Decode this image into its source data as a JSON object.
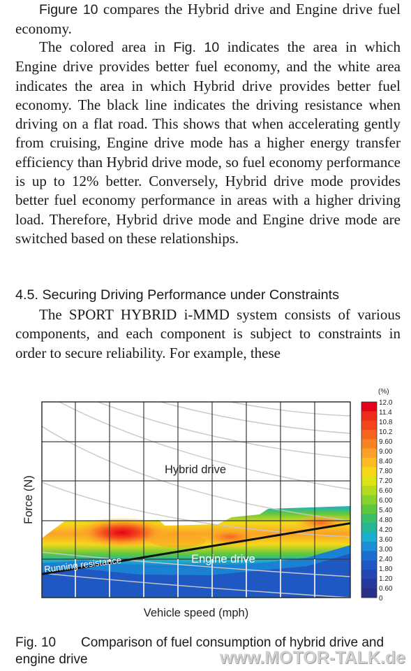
{
  "text": {
    "p1_lead": "Figure 10",
    "p1_rest": " compares the Hybrid drive and Engine drive fuel economy.",
    "p2_a": "The colored area in ",
    "p2_fig": "Fig. 10",
    "p2_rest": " indicates the area in which Engine drive provides better fuel economy, and the white area indicates the area in which Hybrid drive provides better fuel economy. The black line indicates the driving resistance when driving on a flat road. This shows that when accelerating gently from cruising, Engine drive mode has a higher energy transfer efficiency than Hybrid drive mode, so fuel economy performance is up to 12% better. Conversely, Hybrid drive mode provides better fuel economy performance in areas with a higher driving load. Therefore, Hybrid drive mode and Engine drive mode are switched based on these relationships.",
    "heading": "4.5. Securing Driving Performance under Constraints",
    "p3": "The SPORT HYBRID i-MMD system consists of various components, and each component is subject to constraints in order to secure reliability. For example, these"
  },
  "chart_data": {
    "type": "heatmap",
    "xlabel": "Vehicle speed (mph)",
    "ylabel": "Force (N)",
    "region_labels": [
      "Hybrid drive",
      "Engine drive",
      "Running resistance"
    ],
    "colorbar": {
      "unit": "(%)",
      "ticks": [
        "12.0",
        "11.4",
        "10.8",
        "10.2",
        "9.60",
        "9.00",
        "8.40",
        "7.80",
        "7.20",
        "6.60",
        "6.00",
        "5.40",
        "4.80",
        "4.20",
        "3.60",
        "3.00",
        "2.40",
        "1.80",
        "1.20",
        "0.60",
        "0"
      ],
      "colors": [
        "#e3001b",
        "#ee2a1a",
        "#f4461b",
        "#f7641e",
        "#f98322",
        "#fba126",
        "#fdbd22",
        "#f6d81b",
        "#dde414",
        "#b5dc1f",
        "#8ad32c",
        "#5ec83c",
        "#3cbf6d",
        "#25b69a",
        "#1aaed0",
        "#1a8fd8",
        "#1b6fd0",
        "#1f58c2",
        "#2347b0",
        "#26399d",
        "#2a2f88"
      ]
    },
    "running_resistance": {
      "x": [
        0,
        1
      ],
      "y": [
        0.12,
        0.38
      ]
    }
  },
  "caption": {
    "label": "Fig. 10",
    "text": "Comparison of fuel consumption of hybrid drive and engine drive"
  },
  "watermark": "www.MOTOR-TALK.de"
}
